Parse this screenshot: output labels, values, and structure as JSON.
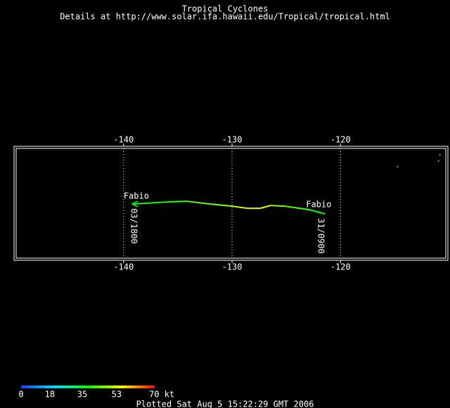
{
  "title": "Tropical Cyclones",
  "subtitle": "Details at http://www.solar.ifa.hawaii.edu/Tropical/tropical.html",
  "map": {
    "lonlim": [
      -150.1,
      -110.1
    ],
    "latlim": [
      10,
      20.5
    ],
    "lonticks": [
      -140,
      -130,
      -120
    ],
    "track": {
      "name": "Fabio",
      "start_label": "31/0900",
      "end_label": "03/1800",
      "lon": [
        -121.43,
        -122.86,
        -125.13,
        -126.43,
        -127.4,
        -128.57,
        -130.0,
        -131.95,
        -134.22,
        -135.84,
        -139.22
      ],
      "lat": [
        14.27,
        14.66,
        14.98,
        15.05,
        14.79,
        14.79,
        14.98,
        15.18,
        15.44,
        15.38,
        15.18
      ],
      "wind": [
        35,
        40,
        45,
        50,
        50,
        48,
        45,
        42,
        38,
        35,
        33
      ]
    },
    "points": {
      "lon": [
        -114.74,
        -110.97,
        -110.84
      ],
      "lat": [
        18.62,
        19.14,
        19.72
      ],
      "color": "#40c040"
    }
  },
  "colorbar": {
    "ticks": [
      0,
      18,
      35,
      53,
      {
        "value": 70,
        "label": "70 kt"
      }
    ],
    "colors": [
      "#2040ff",
      "#00e0ff",
      "#00ff00",
      "#ffff00",
      "#ff0000"
    ]
  },
  "footer": "Plotted Sat Aug 5 15:22:29 GMT 2006"
}
